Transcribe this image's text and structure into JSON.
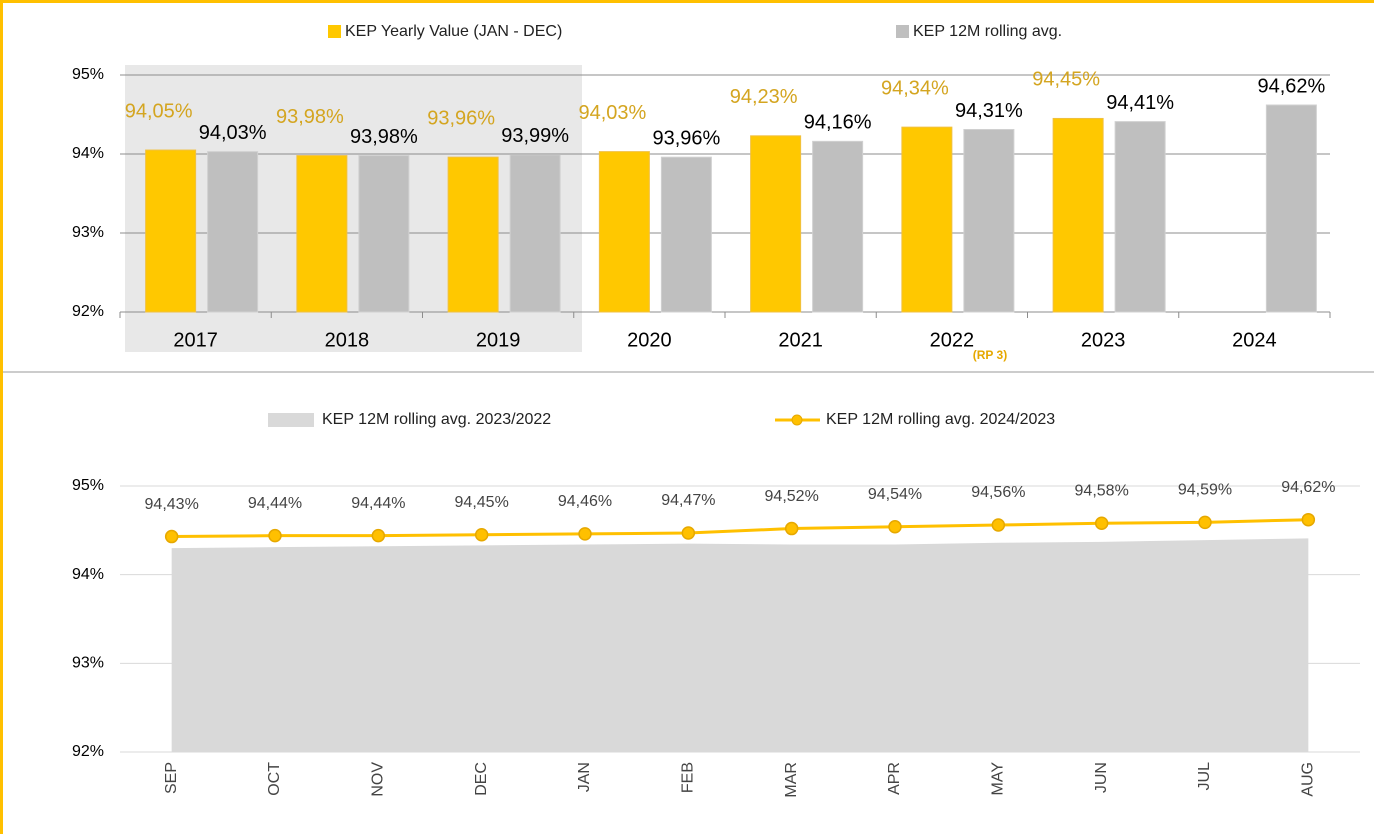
{
  "chart_data": [
    {
      "type": "bar",
      "categories": [
        "2017",
        "2018",
        "2019",
        "2020",
        "2021",
        "2022",
        "2023",
        "2024"
      ],
      "series": [
        {
          "name": "KEP Yearly Value (JAN - DEC)",
          "color": "#ffc800",
          "values": [
            94.05,
            93.98,
            93.96,
            94.03,
            94.23,
            94.34,
            94.45,
            null
          ],
          "value_labels": [
            "94,05%",
            "93,98%",
            "93,96%",
            "94,03%",
            "94,23%",
            "94,34%",
            "94,45%",
            null
          ]
        },
        {
          "name": "KEP 12M rolling avg.",
          "color": "#bfbfbf",
          "values": [
            94.03,
            93.98,
            93.99,
            93.96,
            94.16,
            94.31,
            94.41,
            94.62
          ],
          "value_labels": [
            "94,03%",
            "93,98%",
            "93,99%",
            "93,96%",
            "94,16%",
            "94,31%",
            "94,41%",
            "94,62%"
          ]
        }
      ],
      "ylim": [
        92,
        95
      ],
      "yticks": [
        {
          "value": 92,
          "label": "92%"
        },
        {
          "value": 93,
          "label": "93%"
        },
        {
          "value": 94,
          "label": "94%"
        },
        {
          "value": 95,
          "label": "95%"
        }
      ],
      "grid": true,
      "annotations": [
        "(RP 3)"
      ]
    },
    {
      "type": "line",
      "categories": [
        "SEP",
        "OCT",
        "NOV",
        "DEC",
        "JAN",
        "FEB",
        "MAR",
        "APR",
        "MAY",
        "JUN",
        "JUL",
        "AUG"
      ],
      "series": [
        {
          "name": "KEP 12M rolling avg. 2023/2022",
          "type": "area",
          "color": "#d9d9d9",
          "values": [
            94.3,
            94.31,
            94.32,
            94.33,
            94.34,
            94.35,
            94.34,
            94.34,
            94.36,
            94.37,
            94.39,
            94.41
          ]
        },
        {
          "name": "KEP 12M rolling avg. 2024/2023",
          "type": "line",
          "color": "#ffc000",
          "values": [
            94.43,
            94.44,
            94.44,
            94.45,
            94.46,
            94.47,
            94.52,
            94.54,
            94.56,
            94.58,
            94.59,
            94.62
          ],
          "value_labels": [
            "94,43%",
            "94,44%",
            "94,44%",
            "94,45%",
            "94,46%",
            "94,47%",
            "94,52%",
            "94,54%",
            "94,56%",
            "94,58%",
            "94,59%",
            "94,62%"
          ]
        }
      ],
      "ylim": [
        92,
        95
      ],
      "yticks": [
        {
          "value": 92,
          "label": "92%"
        },
        {
          "value": 93,
          "label": "93%"
        },
        {
          "value": 94,
          "label": "94%"
        },
        {
          "value": 95,
          "label": "95%"
        }
      ],
      "grid": true
    }
  ]
}
